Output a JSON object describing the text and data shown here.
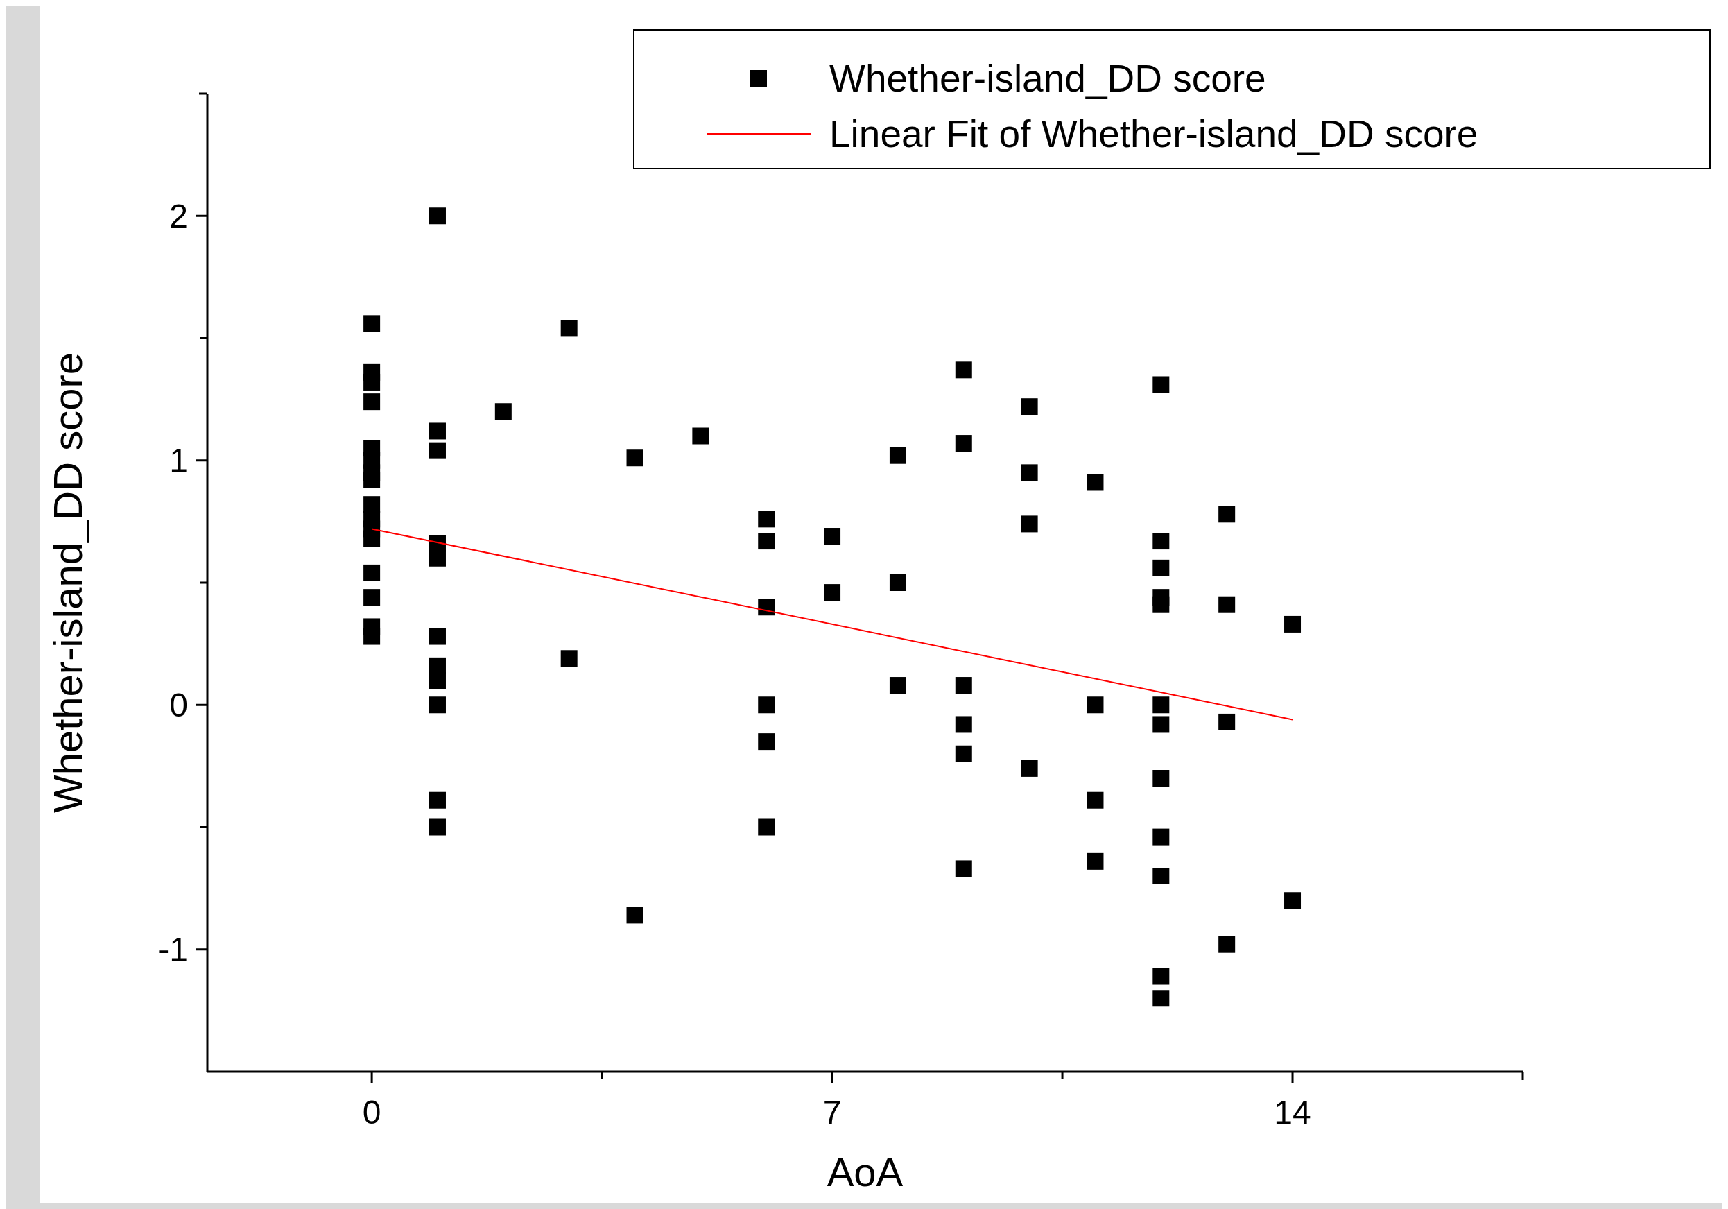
{
  "chart_data": {
    "type": "scatter",
    "xlabel": "AoA",
    "ylabel": "Whether-island_DD score",
    "xlim": [
      -2.5,
      17.5
    ],
    "ylim": [
      -1.5,
      2.5
    ],
    "xticks": [
      0,
      {
        "value": 3.5,
        "label": null
      },
      7,
      {
        "value": 10.5,
        "label": null
      },
      14
    ],
    "yticks": [
      -1,
      {
        "value": -0.5,
        "label": null
      },
      0,
      {
        "value": 0.5,
        "label": null
      },
      1,
      {
        "value": 1.5,
        "label": null
      },
      2
    ],
    "grid": false,
    "legend": "top right",
    "marker": "square",
    "series": [
      {
        "name": "Whether-island_DD score",
        "color": "#000000",
        "x": [
          0,
          0,
          0,
          0,
          0,
          0,
          0,
          0,
          0,
          0,
          0,
          0,
          0,
          0,
          0,
          0,
          1,
          1,
          1,
          1,
          1,
          1,
          1,
          1,
          1,
          1,
          1,
          2,
          3,
          3,
          4,
          4,
          5,
          6,
          6,
          6,
          6,
          6,
          6,
          7,
          7,
          8,
          8,
          8,
          9,
          9,
          9,
          9,
          9,
          9,
          10,
          10,
          10,
          10,
          11,
          11,
          11,
          11,
          12,
          12,
          12,
          12,
          12,
          12,
          12,
          12,
          12,
          12,
          12,
          12,
          13,
          13,
          13,
          13,
          14,
          14
        ],
        "values": [
          1.56,
          1.36,
          1.32,
          1.24,
          1.05,
          1.0,
          0.95,
          0.92,
          0.82,
          0.76,
          0.72,
          0.68,
          0.54,
          0.44,
          0.32,
          0.28,
          2.0,
          1.12,
          1.04,
          0.66,
          0.6,
          0.28,
          0.16,
          0.1,
          0.0,
          -0.39,
          -0.5,
          1.2,
          1.54,
          0.19,
          1.01,
          -0.86,
          1.1,
          0.76,
          0.67,
          0.4,
          0.0,
          -0.15,
          -0.5,
          0.69,
          0.46,
          1.02,
          0.5,
          0.08,
          1.37,
          1.07,
          0.08,
          -0.08,
          -0.2,
          -0.67,
          1.22,
          0.95,
          0.74,
          -0.26,
          0.91,
          0.0,
          -0.39,
          -0.64,
          1.31,
          0.67,
          0.56,
          0.44,
          0.41,
          0.0,
          -0.08,
          -0.3,
          -0.54,
          -0.7,
          -1.11,
          -1.2,
          0.78,
          0.41,
          -0.07,
          -0.98,
          0.33,
          -0.8
        ]
      },
      {
        "name": "Linear Fit of Whether-island_DD score",
        "type": "line",
        "color": "#ff0000",
        "line_style": "solid",
        "marker": "none",
        "x": [
          0,
          14
        ],
        "values": [
          0.72,
          -0.06
        ]
      }
    ]
  }
}
